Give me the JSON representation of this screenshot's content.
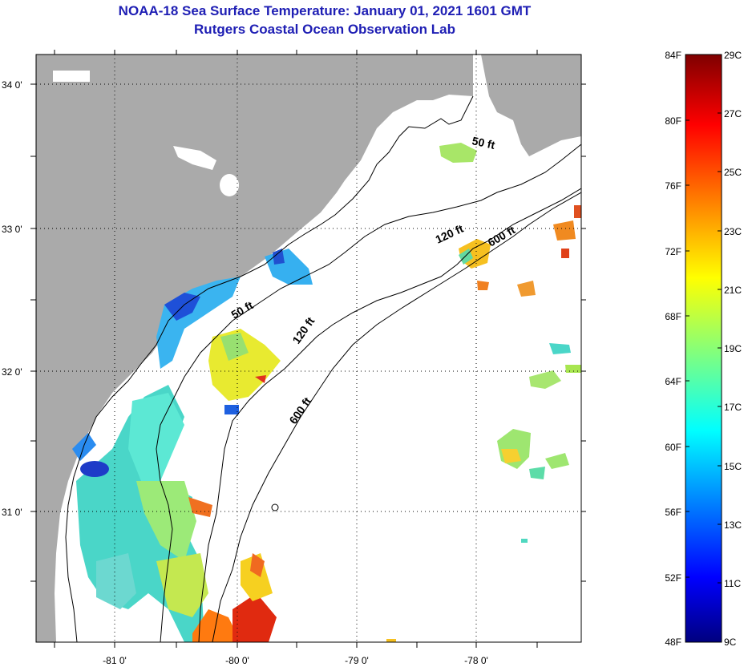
{
  "title": {
    "line1": "NOAA-18 Sea Surface Temperature:  January 01, 2021 1601 GMT",
    "line2": "Rutgers Coastal Ocean Observation Lab"
  },
  "axes": {
    "lat_labels": [
      "34 0'",
      "33 0'",
      "32 0'",
      "31 0'"
    ],
    "lon_labels": [
      "-81 0'",
      "-80 0'",
      "-79 0'",
      "-78 0'"
    ]
  },
  "isobaths": {
    "d50_a": "50 ft",
    "d50_b": "50 ft",
    "d120_a": "120 ft",
    "d120_b": "120 ft",
    "d600_a": "600 ft",
    "d600_b": "600 ft"
  },
  "colorbar": {
    "fahrenheit": [
      "84F",
      "80F",
      "76F",
      "72F",
      "68F",
      "64F",
      "60F",
      "56F",
      "52F",
      "48F"
    ],
    "celsius": [
      "29C",
      "27C",
      "25C",
      "23C",
      "21C",
      "19C",
      "17C",
      "15C",
      "13C",
      "11C",
      "9C"
    ]
  },
  "colors": {
    "title": "#1e1eb4",
    "land": "#aaaaaa",
    "cold": "#00007f",
    "warm": "#7f0000"
  }
}
